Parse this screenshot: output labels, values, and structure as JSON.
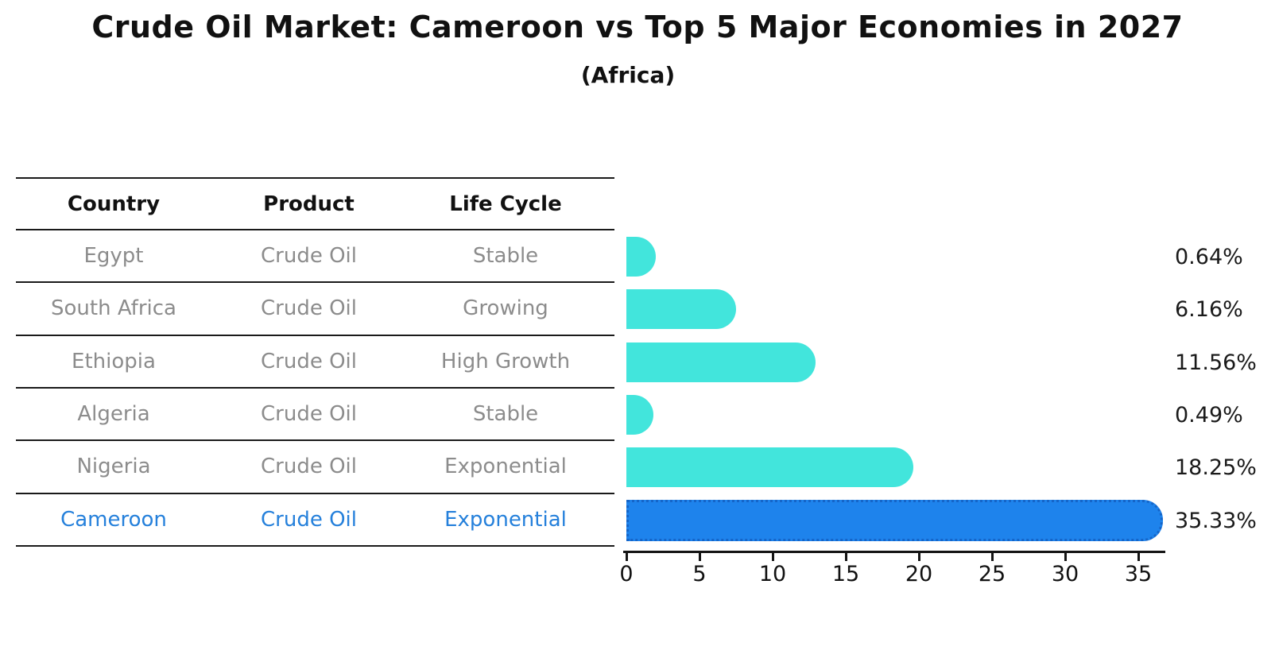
{
  "header": {
    "title": "Crude Oil Market: Cameroon vs Top 5 Major Economies in 2027",
    "subtitle": "(Africa)"
  },
  "table": {
    "columns": [
      "Country",
      "Product",
      "Life Cycle"
    ],
    "rows": [
      {
        "country": "Egypt",
        "product": "Crude Oil",
        "life_cycle": "Stable",
        "highlight": false
      },
      {
        "country": "South Africa",
        "product": "Crude Oil",
        "life_cycle": "Growing",
        "highlight": false
      },
      {
        "country": "Ethiopia",
        "product": "Crude Oil",
        "life_cycle": "High Growth",
        "highlight": false
      },
      {
        "country": "Algeria",
        "product": "Crude Oil",
        "life_cycle": "Stable",
        "highlight": false
      },
      {
        "country": "Nigeria",
        "product": "Crude Oil",
        "life_cycle": "Exponential",
        "highlight": false
      },
      {
        "country": "Cameroon",
        "product": "Crude Oil",
        "life_cycle": "Exponential",
        "highlight": true
      }
    ]
  },
  "chart_data": {
    "type": "bar",
    "orientation": "horizontal",
    "title": "Crude Oil Market: Cameroon vs Top 5 Major Economies in 2027",
    "subtitle": "(Africa)",
    "categories": [
      "Egypt",
      "South Africa",
      "Ethiopia",
      "Algeria",
      "Nigeria",
      "Cameroon"
    ],
    "values": [
      0.64,
      6.16,
      11.56,
      0.49,
      18.25,
      35.33
    ],
    "value_labels": [
      "0.64%",
      "6.16%",
      "11.56%",
      "0.49%",
      "18.25%",
      "35.33%"
    ],
    "xlabel": "",
    "ylabel": "",
    "xlim": [
      0,
      37
    ],
    "x_ticks": [
      "0",
      "5",
      "10",
      "15",
      "20",
      "25",
      "30",
      "35"
    ],
    "grid": false,
    "legend": "none",
    "bar_color": "#42e5dc",
    "highlight_color": "#1e83ec",
    "highlight_border_color": "#1565c8",
    "highlight_index": 5
  },
  "colors": {
    "row_text": "#8c8c8c",
    "highlight_text": "#2580db",
    "line": "#1a1a1a"
  }
}
